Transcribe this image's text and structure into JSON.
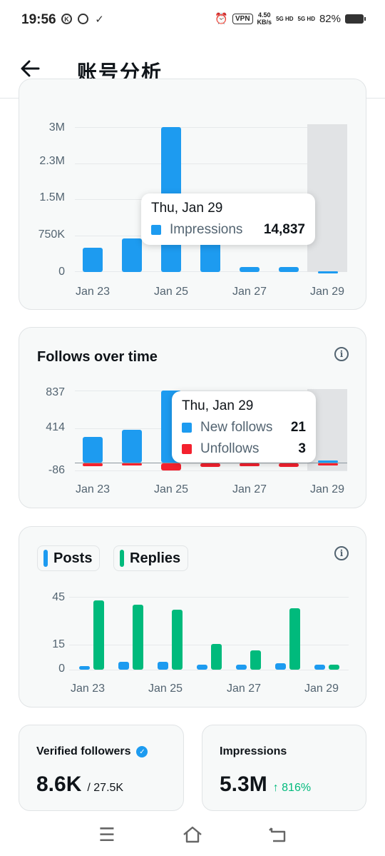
{
  "status_bar": {
    "time": "19:56",
    "vpn": "VPN",
    "speed_value": "4.50",
    "speed_unit": "KB/s",
    "signal1": "5G HD",
    "signal2": "5G HD",
    "battery": "82%"
  },
  "header": {
    "title": "账号分析"
  },
  "impressions_chart": {
    "y_ticks": [
      "3M",
      "2.3M",
      "1.5M",
      "750K",
      "0"
    ],
    "x_ticks": [
      "Jan 23",
      "Jan 25",
      "Jan 27",
      "Jan 29"
    ],
    "tooltip": {
      "date": "Thu, Jan 29",
      "label": "Impressions",
      "value": "14,837"
    }
  },
  "follows_chart": {
    "title": "Follows over time",
    "y_ticks": [
      "837",
      "414",
      "-86"
    ],
    "x_ticks": [
      "Jan 23",
      "Jan 25",
      "Jan 27",
      "Jan 29"
    ],
    "tooltip": {
      "date": "Thu, Jan 29",
      "rows": [
        {
          "label": "New follows",
          "value": "21"
        },
        {
          "label": "Unfollows",
          "value": "3"
        }
      ]
    }
  },
  "posts_chart": {
    "legend": [
      "Posts",
      "Replies"
    ],
    "y_ticks": [
      "45",
      "15",
      "0"
    ],
    "x_ticks": [
      "Jan 23",
      "Jan 25",
      "Jan 27",
      "Jan 29"
    ]
  },
  "chart_data": [
    {
      "type": "bar",
      "categories": [
        "Jan 23",
        "Jan 24",
        "Jan 25",
        "Jan 26",
        "Jan 27",
        "Jan 28",
        "Jan 29"
      ],
      "series": [
        {
          "name": "Impressions",
          "values": [
            500000,
            700000,
            3000000,
            750000,
            110000,
            100000,
            14837
          ]
        }
      ],
      "ylim": [
        0,
        3000000
      ]
    },
    {
      "type": "bar",
      "categories": [
        "Jan 23",
        "Jan 24",
        "Jan 25",
        "Jan 26",
        "Jan 27",
        "Jan 28",
        "Jan 29"
      ],
      "series": [
        {
          "name": "New follows",
          "values": [
            300,
            380,
            837,
            400,
            370,
            380,
            21
          ]
        },
        {
          "name": "Unfollows",
          "values": [
            -30,
            -25,
            -86,
            -45,
            -35,
            -40,
            -3
          ]
        }
      ],
      "ylim": [
        -86,
        837
      ]
    },
    {
      "type": "bar",
      "categories": [
        "Jan 23",
        "Jan 24",
        "Jan 25",
        "Jan 26",
        "Jan 27",
        "Jan 28",
        "Jan 29"
      ],
      "series": [
        {
          "name": "Posts",
          "values": [
            2,
            5,
            5,
            3,
            3,
            4,
            3
          ]
        },
        {
          "name": "Replies",
          "values": [
            43,
            40,
            37,
            16,
            12,
            38,
            3
          ]
        }
      ],
      "ylim": [
        0,
        45
      ]
    }
  ],
  "verified_followers": {
    "label": "Verified followers",
    "value": "8.6K",
    "total": "/ 27.5K"
  },
  "impressions_summary": {
    "label": "Impressions",
    "value": "5.3M",
    "change": "↑ 816%"
  }
}
